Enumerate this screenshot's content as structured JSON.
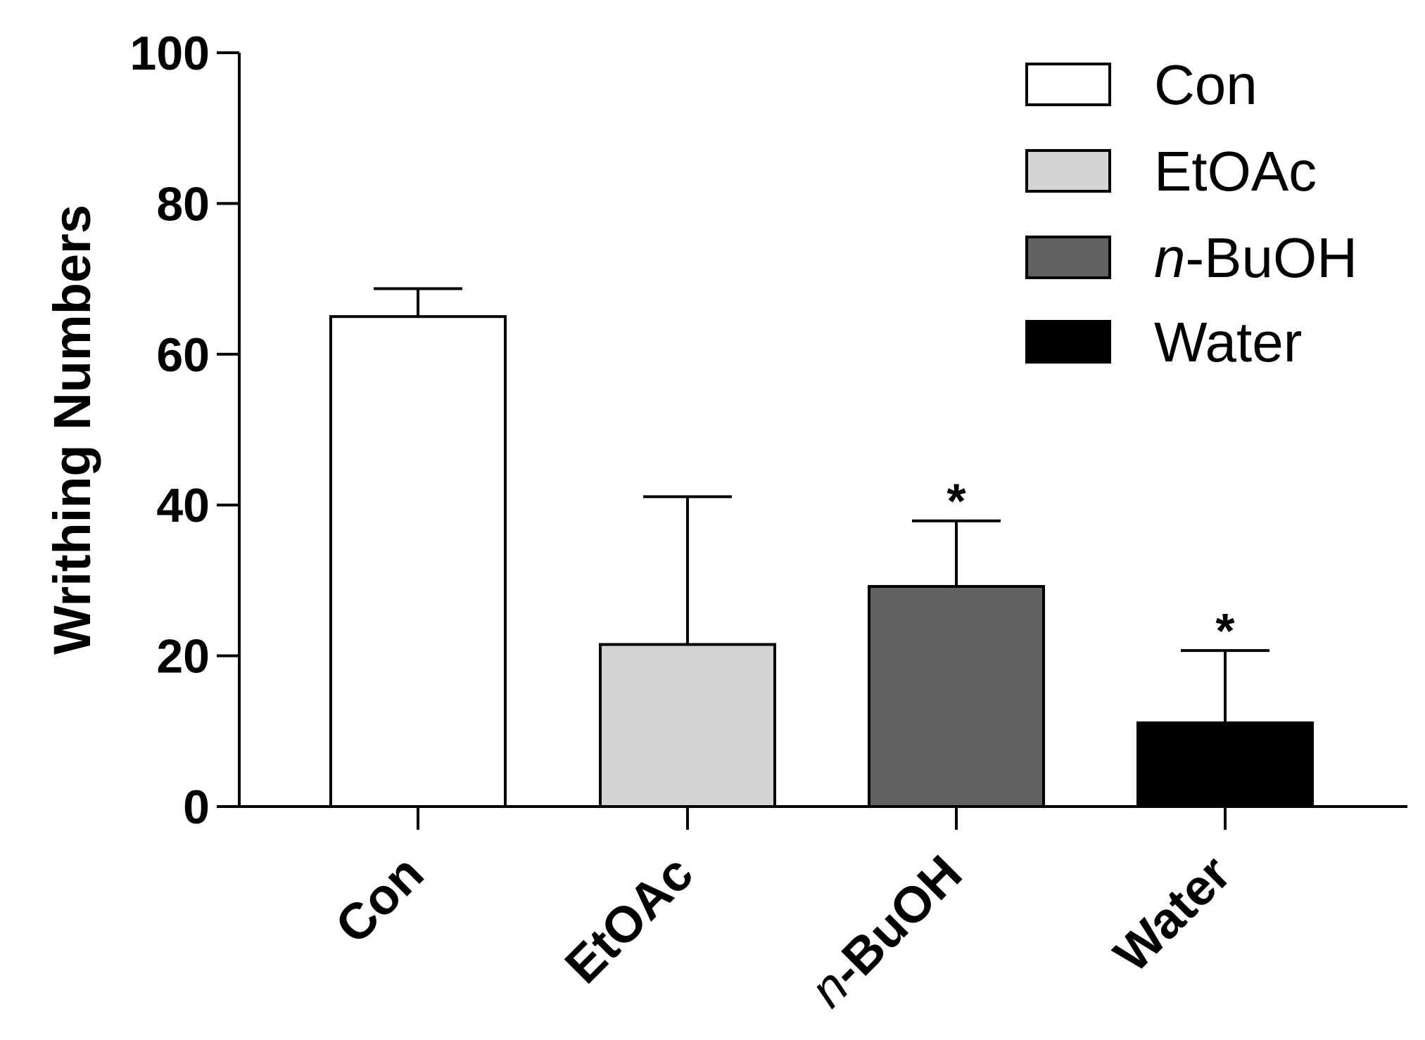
{
  "chart_data": {
    "type": "bar",
    "title": "",
    "xlabel": "",
    "ylabel": "Writhing Numbers",
    "ylim": [
      0,
      100
    ],
    "yticks": [
      0,
      20,
      40,
      60,
      80,
      100
    ],
    "categories": [
      "Con",
      "EtOAc",
      "n-BuOH",
      "Water"
    ],
    "values": [
      65,
      21.5,
      29.2,
      11.1
    ],
    "errors": [
      3.7,
      19.6,
      8.7,
      9.6
    ],
    "significance": [
      "",
      "",
      "*",
      "*"
    ],
    "colors": [
      "#ffffff",
      "#d4d4d4",
      "#616161",
      "#000000"
    ],
    "legend": {
      "position": "top-right",
      "entries": [
        {
          "label": "Con",
          "color": "#ffffff"
        },
        {
          "label": "EtOAc",
          "color": "#d4d4d4"
        },
        {
          "label": "n-BuOH",
          "color": "#616161"
        },
        {
          "label": "Water",
          "color": "#000000"
        }
      ]
    }
  }
}
